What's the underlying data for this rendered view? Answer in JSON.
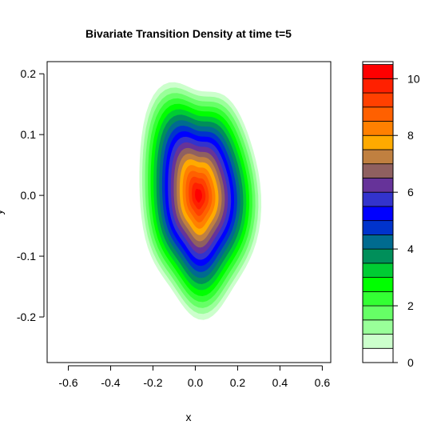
{
  "chart_data": {
    "type": "contour",
    "title": "Bivariate Transition Density at time t=5",
    "xlabel": "x",
    "ylabel": "y",
    "xlim": [
      -0.7,
      0.64
    ],
    "ylim": [
      -0.275,
      0.22
    ],
    "xticks": [
      -0.6,
      -0.4,
      -0.2,
      0.0,
      0.2,
      0.4,
      0.6
    ],
    "xtick_labels": [
      "-0.6",
      "-0.4",
      "-0.2",
      "0.0",
      "0.2",
      "0.4",
      "0.6"
    ],
    "yticks": [
      -0.2,
      -0.1,
      0.0,
      0.1,
      0.2
    ],
    "ytick_labels": [
      "-0.2",
      "-0.1",
      "0.0",
      "0.1",
      "0.2"
    ],
    "peak": {
      "x": 0.015,
      "y": 0.0,
      "value": 10.6
    },
    "contour_levels": [
      0,
      0.5,
      1.0,
      1.5,
      2.0,
      2.5,
      3.0,
      3.5,
      4.0,
      4.5,
      5.0,
      5.5,
      6.0,
      6.5,
      7.0,
      7.5,
      8.0,
      8.5,
      9.0,
      9.5,
      10.0,
      10.5
    ],
    "fill_colors": [
      "#ffffff",
      "#ccffcc",
      "#99ff99",
      "#66ff66",
      "#33ff33",
      "#00ff00",
      "#00cc33",
      "#008f5a",
      "#006b8f",
      "#0033cc",
      "#0000ff",
      "#3333cc",
      "#663399",
      "#8f6060",
      "#c08040",
      "#ffaa00",
      "#ff8000",
      "#ff6000",
      "#ff4000",
      "#ff2000",
      "#ff0000"
    ],
    "legend": {
      "position": "right",
      "range": [
        0,
        10.6
      ],
      "ticks": [
        0,
        2,
        4,
        6,
        8,
        10
      ],
      "tick_labels": [
        "0",
        "2",
        "4",
        "6",
        "8",
        "10"
      ]
    }
  }
}
